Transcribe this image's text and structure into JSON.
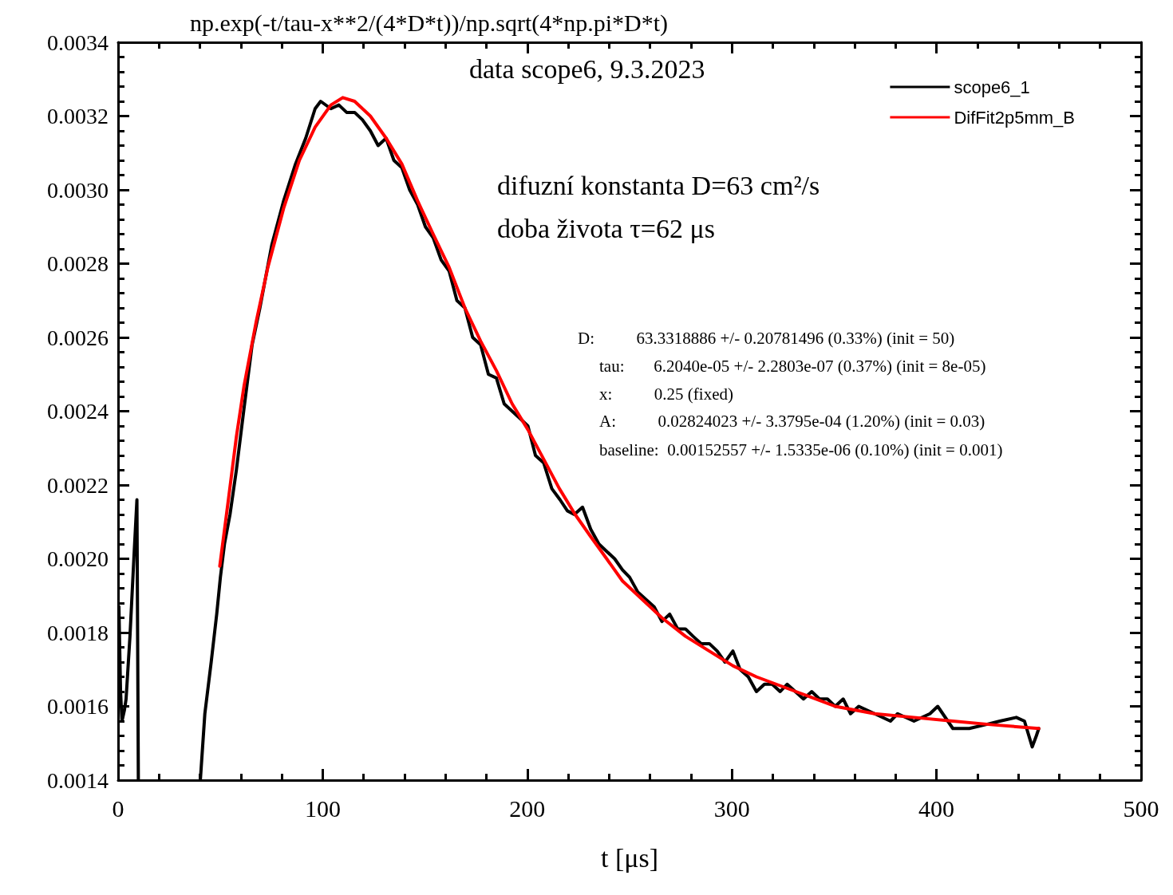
{
  "chart_data": {
    "type": "line",
    "title": "np.exp(-t/tau-x**2/(4*D*t))/np.sqrt(4*np.pi*D*t)",
    "xlabel": "t [μs]",
    "xlim": [
      0,
      500
    ],
    "xticks": [
      0,
      100,
      200,
      300,
      400,
      500
    ],
    "ylim": [
      0.0014,
      0.0034
    ],
    "yticks": [
      0.0014,
      0.0016,
      0.0018,
      {
        "value": 0.002,
        "label": "0.0020"
      },
      0.0022,
      0.0024,
      0.0026,
      0.0028,
      {
        "value": 0.003,
        "label": "0.0030"
      },
      0.0032,
      0.0034
    ],
    "grid": false,
    "legend": "top right",
    "marker": "none",
    "line_style": "solid",
    "annotations": [
      "data scope6, 9.3.2023",
      "difuzní konstanta D=63 cm²/s",
      "doba života τ=62 μs",
      "D:          63.3318886 +/- 0.20781496 (0.33%) (init = 50)",
      "tau:       6.2040e-05 +/- 2.2803e-07 (0.37%) (init = 8e-05)",
      "x:          0.25 (fixed)",
      "A:          0.02824023 +/- 3.3795e-04 (1.20%) (init = 0.03)",
      "baseline:  0.00152557 +/- 1.5335e-06 (0.10%) (init = 0.001)"
    ],
    "series": [
      {
        "name": "scope6_1",
        "color": "#000000",
        "x": [
          0.4,
          1.2,
          1.9,
          3.1,
          3.9,
          5.8,
          7.7,
          9.2,
          9.9,
          20,
          40.2,
          42.4,
          45.5,
          48.2,
          50,
          52,
          54.7,
          57.8,
          61.6,
          65.5,
          69.3,
          75.1,
          80.9,
          86.7,
          91.7,
          96.3,
          99,
          104,
          107.9,
          111.7,
          115.6,
          119.4,
          123.3,
          127.1,
          131,
          134.8,
          138.7,
          142.5,
          146.4,
          150.2,
          154,
          157.9,
          161.8,
          165.6,
          169.5,
          173.3,
          177.2,
          181,
          184.9,
          188.7,
          192.6,
          196.5,
          200.3,
          204,
          208,
          212,
          216,
          219.6,
          223,
          227,
          231,
          235,
          238.8,
          242.7,
          246.5,
          250,
          254,
          258,
          262,
          265.8,
          269.6,
          273.5,
          277.3,
          281,
          285,
          289,
          292.8,
          296.6,
          300.5,
          304,
          308,
          312,
          315.9,
          319.7,
          323.6,
          327,
          331,
          335,
          339,
          342.8,
          346.7,
          350.5,
          354.4,
          358,
          362,
          369.8,
          377.5,
          381,
          389,
          396.8,
          400.6,
          408,
          416,
          423.7,
          431,
          439,
          443,
          446.8,
          448.8,
          450
        ],
        "values": [
          0.00187,
          0.00164,
          0.00156,
          0.00159,
          0.00162,
          0.00179,
          0.002,
          0.00216,
          0.0014,
          null,
          0.0014,
          0.00158,
          0.00172,
          0.00185,
          0.00195,
          0.00204,
          0.00212,
          0.00224,
          0.00241,
          0.00258,
          0.00268,
          0.00285,
          0.00297,
          0.00307,
          0.00314,
          0.00322,
          0.00324,
          0.00322,
          0.00323,
          0.00321,
          0.00321,
          0.00319,
          0.00316,
          0.00312,
          0.00314,
          0.00308,
          0.00306,
          0.003,
          0.00296,
          0.0029,
          0.00287,
          0.00281,
          0.00278,
          0.0027,
          0.00268,
          0.0026,
          0.00258,
          0.0025,
          0.00249,
          0.00242,
          0.0024,
          0.00238,
          0.00236,
          0.00228,
          0.00226,
          0.00219,
          0.00216,
          0.00213,
          0.00212,
          0.00214,
          0.00208,
          0.00204,
          0.00202,
          0.002,
          0.00197,
          0.00195,
          0.00191,
          0.00189,
          0.00187,
          0.00183,
          0.00185,
          0.00181,
          0.00181,
          0.00179,
          0.00177,
          0.00177,
          0.00175,
          0.00172,
          0.00175,
          0.0017,
          0.00168,
          0.00164,
          0.00166,
          0.00166,
          0.00164,
          0.00166,
          0.00164,
          0.00162,
          0.00164,
          0.00162,
          0.00162,
          0.0016,
          0.00162,
          0.00158,
          0.0016,
          0.00158,
          0.00156,
          0.00158,
          0.00156,
          0.00158,
          0.0016,
          0.00154,
          0.00154,
          0.00155,
          0.00156,
          0.00157,
          0.00156,
          0.00149,
          0.00152,
          0.00154
        ]
      },
      {
        "name": "DifFit2p5mm_B",
        "color": "#ff0000",
        "x": [
          49.7,
          53.9,
          57.8,
          61.6,
          67.4,
          73.2,
          80.9,
          88.6,
          96.3,
          104,
          109.8,
          115.6,
          123.3,
          131,
          138.7,
          146.4,
          154,
          161.8,
          169.5,
          177.2,
          184.9,
          192.6,
          200.3,
          208,
          215.7,
          223.4,
          231,
          238.8,
          246.5,
          254.2,
          265.8,
          277.3,
          288.9,
          300.5,
          312,
          331.3,
          350.5,
          369.8,
          389,
          408,
          427.6,
          450
        ],
        "values": [
          0.00198,
          0.00216,
          0.00233,
          0.00247,
          0.00264,
          0.00279,
          0.00295,
          0.00308,
          0.00317,
          0.00323,
          0.00325,
          0.00324,
          0.0032,
          0.00314,
          0.00307,
          0.00297,
          0.00288,
          0.00279,
          0.00268,
          0.00259,
          0.00251,
          0.00242,
          0.00235,
          0.00227,
          0.00219,
          0.00212,
          0.00206,
          0.002,
          0.00194,
          0.0019,
          0.00184,
          0.00179,
          0.00175,
          0.00171,
          0.00168,
          0.00164,
          0.0016,
          0.00158,
          0.00157,
          0.00156,
          0.00155,
          0.00154
        ]
      }
    ]
  }
}
